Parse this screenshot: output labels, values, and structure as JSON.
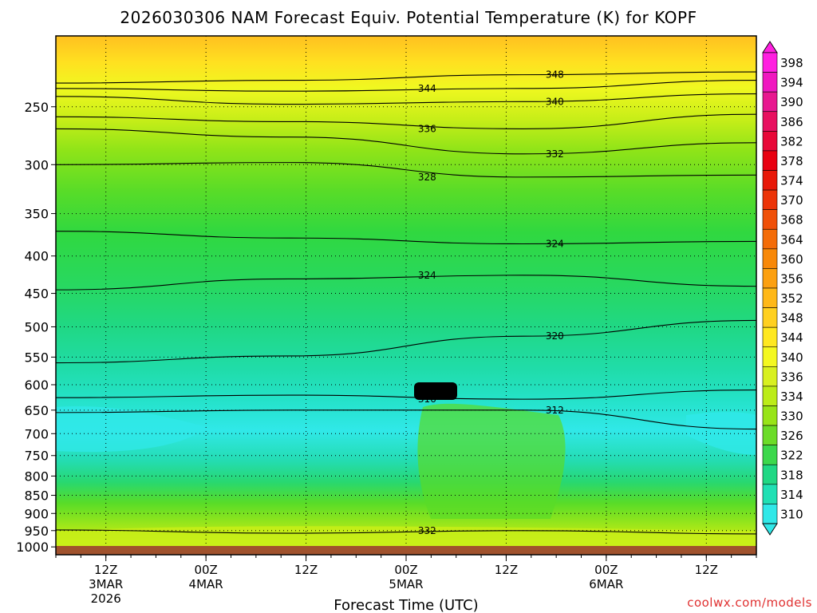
{
  "chart_data": {
    "type": "heatmap",
    "title": "2026030306 NAM Forecast Equiv. Potential Temperature (K) for KOPF",
    "xlabel": "Forecast Time (UTC)",
    "ylabel": "",
    "y_ticks": [
      250,
      300,
      350,
      400,
      450,
      500,
      550,
      600,
      650,
      700,
      750,
      800,
      850,
      900,
      950,
      1000
    ],
    "y_range": [
      200,
      1025
    ],
    "y_scale": "log-pressure",
    "x_range_hours": [
      0,
      84
    ],
    "x_ticks": [
      {
        "hour": 6,
        "line1": "12Z",
        "line2": "3MAR",
        "line3": "2026"
      },
      {
        "hour": 18,
        "line1": "00Z",
        "line2": "4MAR",
        "line3": ""
      },
      {
        "hour": 30,
        "line1": "12Z",
        "line2": "",
        "line3": ""
      },
      {
        "hour": 42,
        "line1": "00Z",
        "line2": "5MAR",
        "line3": ""
      },
      {
        "hour": 54,
        "line1": "12Z",
        "line2": "",
        "line3": ""
      },
      {
        "hour": 66,
        "line1": "00Z",
        "line2": "6MAR",
        "line3": ""
      },
      {
        "hour": 78,
        "line1": "12Z",
        "line2": "",
        "line3": ""
      }
    ],
    "colorbar_labels": [
      "398",
      "394",
      "390",
      "386",
      "382",
      "378",
      "374",
      "370",
      "368",
      "364",
      "360",
      "356",
      "352",
      "348",
      "344",
      "340",
      "336",
      "334",
      "330",
      "326",
      "322",
      "318",
      "314",
      "310"
    ],
    "colorbar_colors": [
      "#ff20e0",
      "#f018c0",
      "#e81890",
      "#e81060",
      "#e80838",
      "#e80010",
      "#e81808",
      "#ec3408",
      "#f05008",
      "#f46c08",
      "#f88808",
      "#fca010",
      "#ffb818",
      "#ffd020",
      "#ffe820",
      "#f4f820",
      "#d8f020",
      "#bcec18",
      "#98e418",
      "#6cdc28",
      "#3cd84c",
      "#20d884",
      "#20e0b4",
      "#30e8e8"
    ],
    "contours": [
      {
        "label": "348",
        "samples": [
          [
            0,
            232
          ],
          [
            28,
            230
          ],
          [
            56,
            226
          ],
          [
            84,
            224
          ]
        ]
      },
      {
        "label": "344",
        "samples": [
          [
            0,
            236
          ],
          [
            28,
            238
          ],
          [
            56,
            236
          ],
          [
            84,
            230
          ]
        ]
      },
      {
        "label": "340",
        "samples": [
          [
            0,
            242
          ],
          [
            28,
            248
          ],
          [
            56,
            246
          ],
          [
            84,
            240
          ]
        ]
      },
      {
        "label": "336",
        "samples": [
          [
            0,
            258
          ],
          [
            28,
            262
          ],
          [
            56,
            268
          ],
          [
            84,
            256
          ]
        ]
      },
      {
        "label": "332",
        "samples": [
          [
            0,
            268
          ],
          [
            28,
            275
          ],
          [
            56,
            290
          ],
          [
            84,
            280
          ]
        ]
      },
      {
        "label": "328",
        "samples": [
          [
            0,
            300
          ],
          [
            28,
            298
          ],
          [
            56,
            312
          ],
          [
            84,
            310
          ]
        ]
      },
      {
        "label": "324",
        "samples": [
          [
            0,
            370
          ],
          [
            28,
            378
          ],
          [
            56,
            385
          ],
          [
            84,
            382
          ]
        ]
      },
      {
        "label": "324",
        "samples": [
          [
            0,
            445
          ],
          [
            28,
            430
          ],
          [
            56,
            425
          ],
          [
            84,
            440
          ]
        ]
      },
      {
        "label": "320",
        "samples": [
          [
            0,
            560
          ],
          [
            28,
            548
          ],
          [
            56,
            515
          ],
          [
            84,
            490
          ]
        ]
      },
      {
        "label": "316",
        "samples": [
          [
            0,
            625
          ],
          [
            28,
            620
          ],
          [
            56,
            628
          ],
          [
            84,
            610
          ]
        ]
      },
      {
        "label": "312",
        "samples": [
          [
            0,
            655
          ],
          [
            28,
            650
          ],
          [
            56,
            650
          ],
          [
            84,
            690
          ]
        ]
      },
      {
        "label": "332",
        "samples": [
          [
            0,
            948
          ],
          [
            28,
            958
          ],
          [
            56,
            950
          ],
          [
            84,
            960
          ]
        ]
      }
    ],
    "grid": "dotted",
    "colorbar_position": "right",
    "credit": "coolwx.com/models"
  }
}
